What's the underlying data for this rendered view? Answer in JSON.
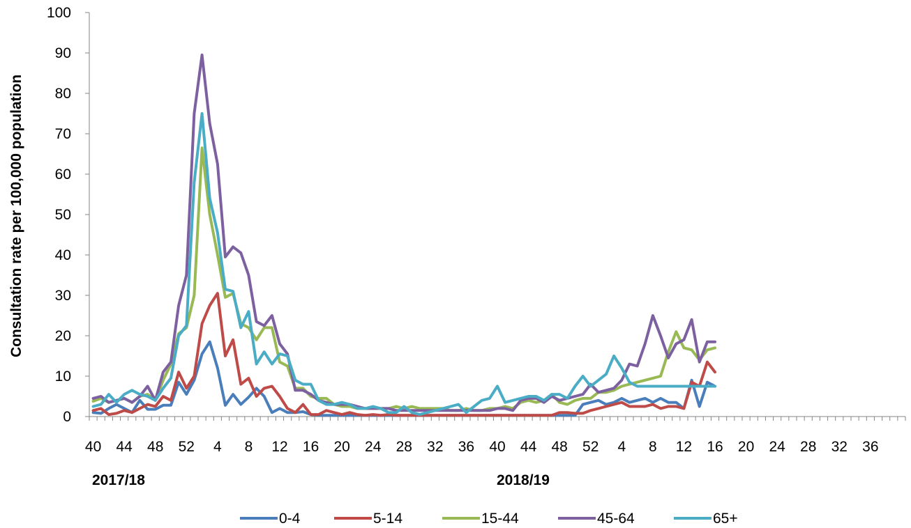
{
  "chart_data": {
    "type": "line",
    "ylabel": "Consultation rate per 100,000 population",
    "ylim": [
      0,
      100
    ],
    "yticks": [
      0,
      10,
      20,
      30,
      40,
      50,
      60,
      70,
      80,
      90,
      100
    ],
    "xlabel": "",
    "x_tick_labels": [
      "40",
      "44",
      "48",
      "52",
      "4",
      "8",
      "12",
      "16",
      "20",
      "24",
      "28",
      "32",
      "36",
      "40",
      "44",
      "48",
      "52",
      "4",
      "8",
      "12",
      "16",
      "20",
      "24",
      "28",
      "32",
      "36"
    ],
    "seasons": [
      "2017/18",
      "2018/19"
    ],
    "grid": false,
    "legend_position": "bottom",
    "series": [
      {
        "name": "0-4",
        "color": "#4a7ebb",
        "values": [
          1.0,
          0.8,
          2.0,
          3.0,
          2.0,
          1.0,
          4.0,
          1.8,
          1.8,
          2.8,
          2.8,
          8.5,
          5.5,
          9.0,
          15.5,
          18.5,
          12.0,
          2.8,
          5.5,
          3.0,
          4.8,
          7.0,
          5.0,
          1.0,
          2.0,
          1.0,
          1.0,
          1.2,
          0.5,
          0.3,
          0.3,
          0.3,
          0.3,
          0.3,
          0.3,
          0.3,
          0.3,
          0.3,
          0.3,
          0.3,
          0.3,
          0.3,
          0.3,
          0.3,
          0.3,
          0.3,
          0.3,
          0.3,
          0.3,
          0.3,
          0.3,
          0.3,
          0.3,
          0.3,
          0.3,
          0.3,
          0.3,
          0.3,
          0.3,
          0.3,
          0.3,
          0.3,
          0.3,
          3.0,
          3.5,
          4.0,
          3.0,
          3.5,
          4.5,
          3.5,
          4.0,
          4.5,
          3.5,
          4.5,
          3.5,
          3.5,
          2.0,
          9.0,
          2.5,
          8.5,
          7.5
        ]
      },
      {
        "name": "5-14",
        "color": "#be4b48",
        "values": [
          1.5,
          2.0,
          0.5,
          0.8,
          1.5,
          1.0,
          2.0,
          3.0,
          2.5,
          5.0,
          4.0,
          11.0,
          7.0,
          10.0,
          23.0,
          27.5,
          30.5,
          15.0,
          19.0,
          8.0,
          9.5,
          5.0,
          7.0,
          7.5,
          5.0,
          2.0,
          1.0,
          3.0,
          0.5,
          0.5,
          1.5,
          1.0,
          0.5,
          1.0,
          0.5,
          0.3,
          0.5,
          0.3,
          0.5,
          0.3,
          0.3,
          0.3,
          0.3,
          0.3,
          0.3,
          0.3,
          0.3,
          0.3,
          0.3,
          0.3,
          0.3,
          0.3,
          0.3,
          0.3,
          0.3,
          0.3,
          0.3,
          0.3,
          0.3,
          0.3,
          1.0,
          1.0,
          0.8,
          0.8,
          1.5,
          2.0,
          2.5,
          3.0,
          3.5,
          2.5,
          2.5,
          2.5,
          3.0,
          2.0,
          2.5,
          2.5,
          2.0,
          8.5,
          7.5,
          13.5,
          11.0
        ]
      },
      {
        "name": "15-44",
        "color": "#98b954",
        "values": [
          3.8,
          4.5,
          3.5,
          4.0,
          4.5,
          3.5,
          5.0,
          5.5,
          4.0,
          9.0,
          13.0,
          20.5,
          22.0,
          30.0,
          66.5,
          50.0,
          40.0,
          29.5,
          30.5,
          23.0,
          22.0,
          19.0,
          22.0,
          22.0,
          13.5,
          12.5,
          7.0,
          7.0,
          5.0,
          4.5,
          4.5,
          3.0,
          2.5,
          2.5,
          2.0,
          2.0,
          2.0,
          2.0,
          2.0,
          2.5,
          2.0,
          2.5,
          2.0,
          2.0,
          2.0,
          2.0,
          1.5,
          1.5,
          2.0,
          1.5,
          1.5,
          2.0,
          2.0,
          2.5,
          2.0,
          3.5,
          4.0,
          3.5,
          4.0,
          5.5,
          3.5,
          3.0,
          4.0,
          4.5,
          4.5,
          6.0,
          6.0,
          6.5,
          7.5,
          8.0,
          8.5,
          9.0,
          9.5,
          10.0,
          16.0,
          21.0,
          17.0,
          16.5,
          14.0,
          16.5,
          17.0
        ]
      },
      {
        "name": "45-64",
        "color": "#7d60a0",
        "values": [
          4.5,
          5.0,
          3.5,
          4.0,
          4.5,
          3.5,
          5.0,
          7.5,
          4.0,
          11.0,
          13.5,
          27.5,
          35.0,
          75.0,
          89.5,
          72.5,
          62.5,
          39.5,
          42.0,
          40.5,
          35.0,
          23.5,
          22.5,
          25.0,
          18.0,
          15.5,
          6.5,
          6.5,
          5.5,
          4.0,
          3.5,
          3.0,
          3.0,
          3.0,
          2.5,
          2.0,
          2.0,
          2.0,
          2.0,
          1.5,
          1.5,
          1.5,
          1.5,
          1.5,
          1.5,
          1.5,
          1.5,
          1.5,
          1.5,
          1.5,
          1.5,
          1.5,
          2.0,
          2.0,
          1.5,
          4.0,
          4.5,
          4.5,
          3.5,
          5.0,
          4.0,
          4.5,
          5.0,
          5.5,
          8.0,
          6.0,
          6.5,
          7.0,
          9.0,
          13.0,
          12.5,
          18.0,
          25.0,
          20.0,
          14.5,
          18.0,
          19.0,
          24.0,
          13.5,
          18.5,
          18.5
        ]
      },
      {
        "name": "65+",
        "color": "#4bacc6",
        "values": [
          2.5,
          3.0,
          5.5,
          3.5,
          5.5,
          6.5,
          5.5,
          5.0,
          4.0,
          7.0,
          9.5,
          20.0,
          22.5,
          58.0,
          75.0,
          54.0,
          45.5,
          31.5,
          31.0,
          22.0,
          26.0,
          13.0,
          16.0,
          13.0,
          15.5,
          15.0,
          9.0,
          8.0,
          8.0,
          4.0,
          3.0,
          3.0,
          3.5,
          3.0,
          2.0,
          2.0,
          2.5,
          2.0,
          1.0,
          1.0,
          2.5,
          1.0,
          0.5,
          1.0,
          1.5,
          2.0,
          2.5,
          3.0,
          1.0,
          2.5,
          4.0,
          4.5,
          7.5,
          3.5,
          4.0,
          4.5,
          5.0,
          5.0,
          4.0,
          5.5,
          5.5,
          4.5,
          7.5,
          10.0,
          7.5,
          9.0,
          10.5,
          15.0,
          12.0,
          8.5,
          7.5,
          7.5,
          7.5,
          7.5,
          7.5,
          7.5,
          7.5,
          7.5,
          7.5,
          7.5,
          7.5
        ]
      }
    ]
  }
}
